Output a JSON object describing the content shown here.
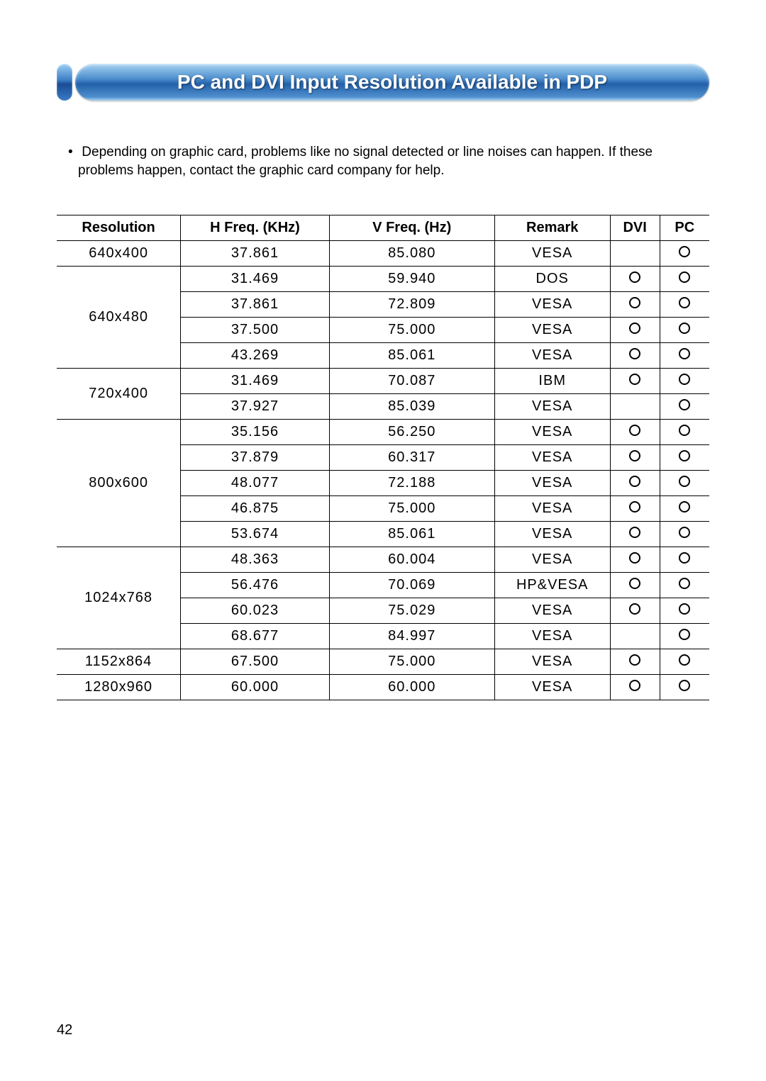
{
  "title": "PC and DVI Input Resolution Available in PDP",
  "note_line1": "Depending on graphic card, problems like no signal detected or line noises can happen. If these",
  "note_line2": "problems happen, contact the graphic card company for help.",
  "page_number": "42",
  "table": {
    "headers": {
      "resolution": "Resolution",
      "hfreq": "H Freq. (KHz)",
      "vfreq": "V Freq. (Hz)",
      "remark": "Remark",
      "dvi": "DVI",
      "pc": "PC"
    },
    "groups": [
      {
        "resolution": "640x400",
        "rows": [
          {
            "h": "37.861",
            "v": "85.080",
            "remark": "VESA",
            "dvi": false,
            "pc": true
          }
        ]
      },
      {
        "resolution": "640x480",
        "rows": [
          {
            "h": "31.469",
            "v": "59.940",
            "remark": "DOS",
            "dvi": true,
            "pc": true
          },
          {
            "h": "37.861",
            "v": "72.809",
            "remark": "VESA",
            "dvi": true,
            "pc": true
          },
          {
            "h": "37.500",
            "v": "75.000",
            "remark": "VESA",
            "dvi": true,
            "pc": true
          },
          {
            "h": "43.269",
            "v": "85.061",
            "remark": "VESA",
            "dvi": true,
            "pc": true
          }
        ]
      },
      {
        "resolution": "720x400",
        "rows": [
          {
            "h": "31.469",
            "v": "70.087",
            "remark": "IBM",
            "dvi": true,
            "pc": true
          },
          {
            "h": "37.927",
            "v": "85.039",
            "remark": "VESA",
            "dvi": false,
            "pc": true
          }
        ]
      },
      {
        "resolution": "800x600",
        "rows": [
          {
            "h": "35.156",
            "v": "56.250",
            "remark": "VESA",
            "dvi": true,
            "pc": true
          },
          {
            "h": "37.879",
            "v": "60.317",
            "remark": "VESA",
            "dvi": true,
            "pc": true
          },
          {
            "h": "48.077",
            "v": "72.188",
            "remark": "VESA",
            "dvi": true,
            "pc": true
          },
          {
            "h": "46.875",
            "v": "75.000",
            "remark": "VESA",
            "dvi": true,
            "pc": true
          },
          {
            "h": "53.674",
            "v": "85.061",
            "remark": "VESA",
            "dvi": true,
            "pc": true
          }
        ]
      },
      {
        "resolution": "1024x768",
        "rows": [
          {
            "h": "48.363",
            "v": "60.004",
            "remark": "VESA",
            "dvi": true,
            "pc": true
          },
          {
            "h": "56.476",
            "v": "70.069",
            "remark": "HP&VESA",
            "dvi": true,
            "pc": true
          },
          {
            "h": "60.023",
            "v": "75.029",
            "remark": "VESA",
            "dvi": true,
            "pc": true
          },
          {
            "h": "68.677",
            "v": "84.997",
            "remark": "VESA",
            "dvi": false,
            "pc": true
          }
        ]
      },
      {
        "resolution": "1152x864",
        "rows": [
          {
            "h": "67.500",
            "v": "75.000",
            "remark": "VESA",
            "dvi": true,
            "pc": true
          }
        ]
      },
      {
        "resolution": "1280x960",
        "rows": [
          {
            "h": "60.000",
            "v": "60.000",
            "remark": "VESA",
            "dvi": true,
            "pc": true
          }
        ]
      }
    ]
  }
}
